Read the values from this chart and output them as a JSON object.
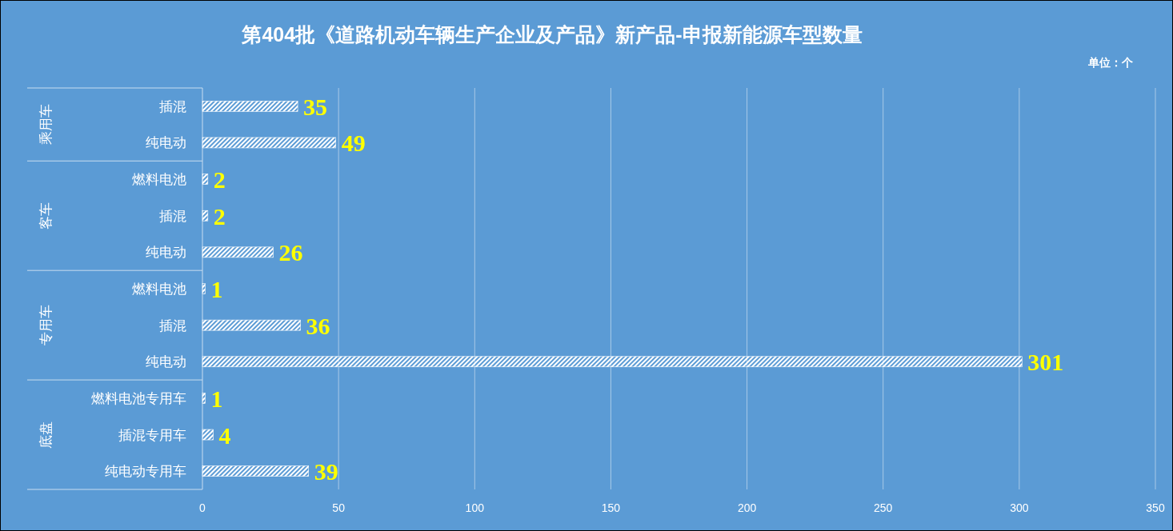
{
  "chart_data": {
    "type": "bar",
    "orientation": "horizontal",
    "title": "第404批《道路机动车辆生产企业及产品》新产品-申报新能源车型数量",
    "annotations": [
      "单位：个",
      "乘用车",
      "客车",
      "专用车",
      "底盘"
    ],
    "categories": [
      "插混",
      "纯电动",
      "燃料电池",
      "插混",
      "纯电动",
      "燃料电池",
      "插混",
      "纯电动",
      "燃料电池专用车",
      "插混专用车",
      "纯电动专用车"
    ],
    "values": [
      35,
      49,
      2,
      2,
      26,
      1,
      36,
      301,
      1,
      4,
      39
    ],
    "color": "#ffffff",
    "xlim": [
      0,
      350
    ],
    "xticks": [
      0,
      50,
      100,
      150,
      200,
      250,
      300,
      350
    ],
    "grid": "x",
    "data_labels": true
  }
}
